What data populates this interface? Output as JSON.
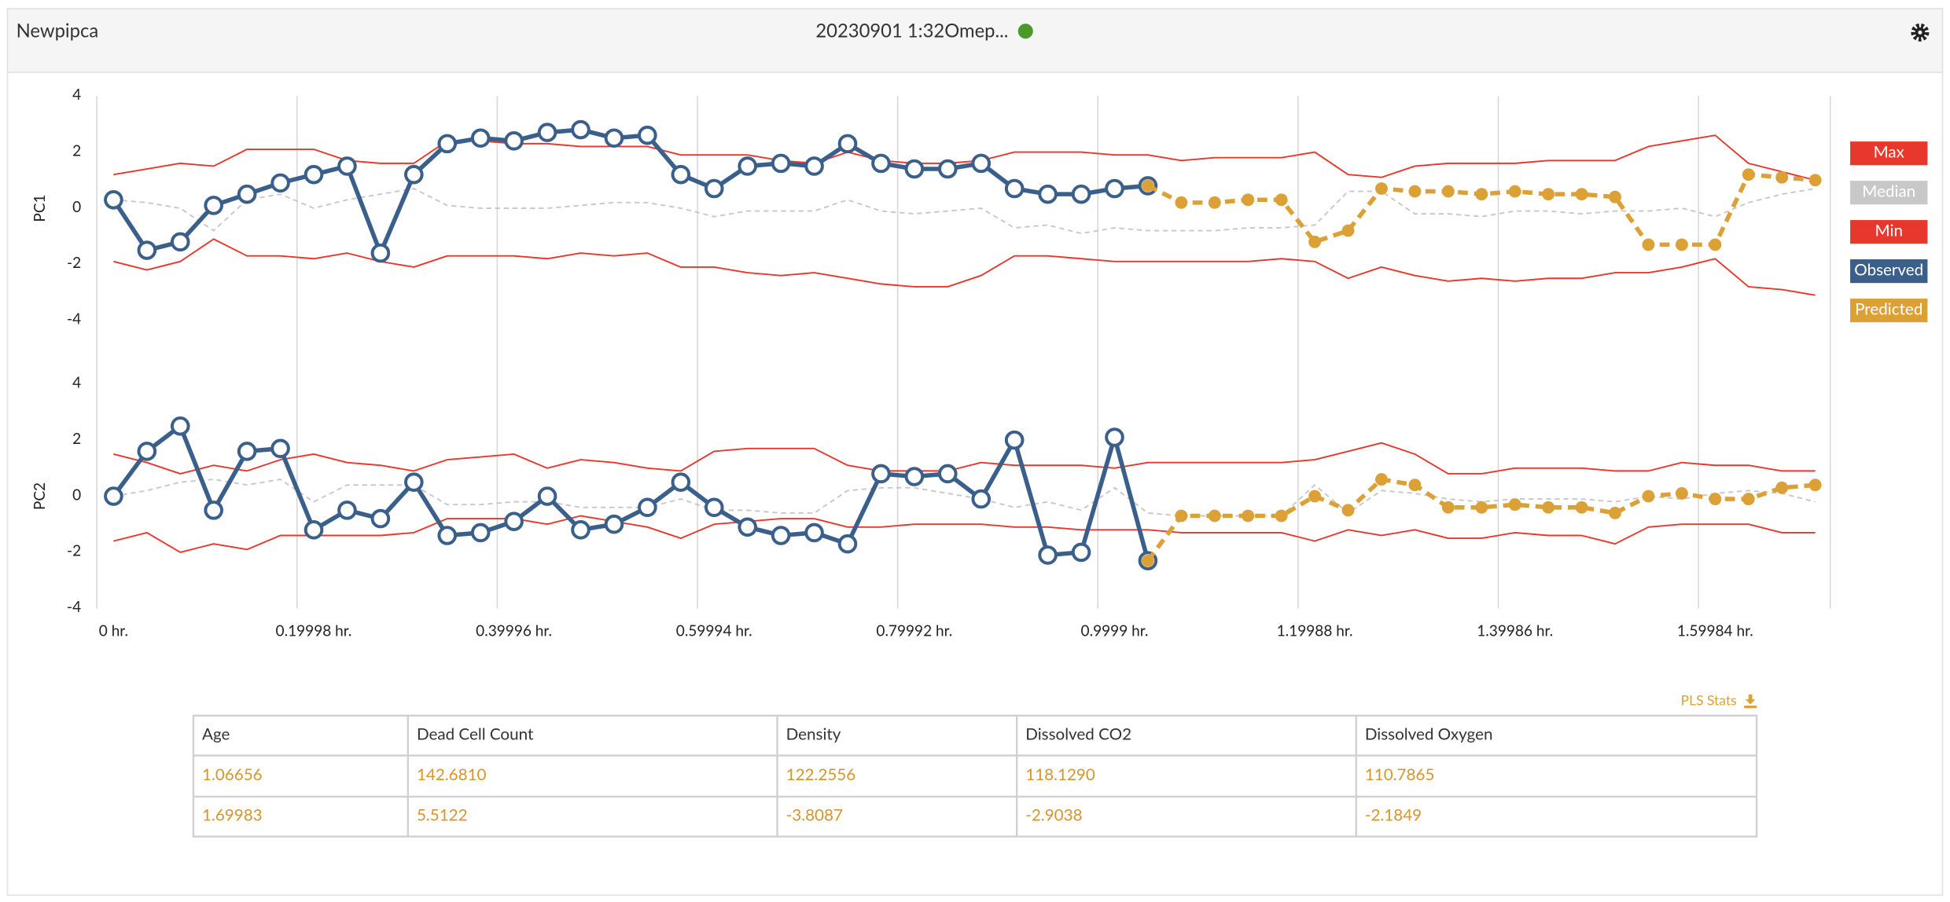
{
  "header": {
    "title": "Newpipca",
    "subtitle": "20230901 1:32Omep..."
  },
  "chart_data": [
    {
      "type": "line",
      "ylabel": "PC1",
      "ylim": [
        -4,
        4
      ],
      "yticks": [
        -4,
        -2,
        0,
        2,
        4
      ],
      "series": [
        {
          "name": "Max",
          "color": "#e8372c",
          "values": [
            1.2,
            1.4,
            1.6,
            1.5,
            2.1,
            2.1,
            2.1,
            1.7,
            1.6,
            1.6,
            2.4,
            2.4,
            2.3,
            2.3,
            2.2,
            2.2,
            2.2,
            1.9,
            1.9,
            1.9,
            1.7,
            1.6,
            2.0,
            1.7,
            1.6,
            1.6,
            1.7,
            2.0,
            2.0,
            2.0,
            1.9,
            1.9,
            1.7,
            1.8,
            1.8,
            1.8,
            2.0,
            1.2,
            1.1,
            1.5,
            1.6,
            1.6,
            1.6,
            1.7,
            1.7,
            1.7,
            2.2,
            2.4,
            2.6,
            1.6,
            1.3,
            1.0
          ]
        },
        {
          "name": "Median",
          "color": "#c8c8c8",
          "dashed": true,
          "values": [
            0.3,
            0.2,
            0.0,
            -0.8,
            0.3,
            0.5,
            0.0,
            0.3,
            0.5,
            0.7,
            0.1,
            0.0,
            0.0,
            0.0,
            0.1,
            0.2,
            0.2,
            0.0,
            -0.3,
            -0.1,
            -0.1,
            -0.1,
            0.3,
            -0.1,
            -0.2,
            -0.1,
            0.0,
            -0.7,
            -0.6,
            -0.9,
            -0.7,
            -0.8,
            -0.8,
            -0.8,
            -0.7,
            -0.7,
            -0.6,
            0.6,
            0.6,
            -0.2,
            -0.2,
            -0.3,
            -0.1,
            -0.1,
            -0.2,
            -0.1,
            -0.1,
            0.0,
            -0.3,
            0.2,
            0.5,
            0.7
          ]
        },
        {
          "name": "Min",
          "color": "#e8372c",
          "values": [
            -1.9,
            -2.2,
            -1.9,
            -1.1,
            -1.7,
            -1.7,
            -1.8,
            -1.6,
            -1.9,
            -2.1,
            -1.7,
            -1.7,
            -1.7,
            -1.8,
            -1.6,
            -1.7,
            -1.6,
            -2.1,
            -2.1,
            -2.3,
            -2.4,
            -2.3,
            -2.5,
            -2.7,
            -2.8,
            -2.8,
            -2.4,
            -1.7,
            -1.7,
            -1.8,
            -1.9,
            -1.9,
            -1.9,
            -1.9,
            -1.9,
            -1.8,
            -1.9,
            -2.5,
            -2.1,
            -2.4,
            -2.6,
            -2.5,
            -2.6,
            -2.5,
            -2.5,
            -2.3,
            -2.3,
            -2.1,
            -1.8,
            -2.8,
            -2.9,
            -3.1
          ]
        },
        {
          "name": "Observed",
          "color": "#3a5f8a",
          "markers": "hollow",
          "values": [
            0.3,
            -1.5,
            -1.2,
            0.1,
            0.5,
            0.9,
            1.2,
            1.5,
            -1.6,
            1.2,
            2.3,
            2.5,
            2.4,
            2.7,
            2.8,
            2.5,
            2.6,
            1.2,
            0.7,
            1.5,
            1.6,
            1.5,
            2.3,
            1.6,
            1.4,
            1.4,
            1.6,
            0.7,
            0.5,
            0.5,
            0.7,
            0.8,
            null,
            null,
            null,
            null,
            null,
            null,
            null,
            null,
            null,
            null,
            null,
            null,
            null,
            null,
            null,
            null,
            null,
            null,
            null,
            null
          ]
        },
        {
          "name": "Predicted",
          "color": "#dca136",
          "dashed": true,
          "markers": "filled",
          "values": [
            null,
            null,
            null,
            null,
            null,
            null,
            null,
            null,
            null,
            null,
            null,
            null,
            null,
            null,
            null,
            null,
            null,
            null,
            null,
            null,
            null,
            null,
            null,
            null,
            null,
            null,
            null,
            null,
            null,
            null,
            null,
            0.8,
            0.2,
            0.2,
            0.3,
            0.3,
            -1.2,
            -0.8,
            0.7,
            0.6,
            0.6,
            0.5,
            0.6,
            0.5,
            0.5,
            0.4,
            -1.3,
            -1.3,
            -1.3,
            1.2,
            1.1,
            1.0
          ]
        }
      ]
    },
    {
      "type": "line",
      "ylabel": "PC2",
      "ylim": [
        -4,
        4
      ],
      "yticks": [
        -4,
        -2,
        0,
        2,
        4
      ],
      "categories": [
        "0 hr.",
        null,
        null,
        null,
        null,
        null,
        "0.19998 hr.",
        null,
        null,
        null,
        null,
        null,
        "0.39996 hr.",
        null,
        null,
        null,
        null,
        null,
        "0.59994 hr.",
        null,
        null,
        null,
        null,
        null,
        "0.79992 hr.",
        null,
        null,
        null,
        null,
        null,
        "0.9999 hr.",
        null,
        null,
        null,
        null,
        null,
        "1.19988 hr.",
        null,
        null,
        null,
        null,
        null,
        "1.39986 hr.",
        null,
        null,
        null,
        null,
        null,
        "1.59984 hr.",
        null,
        null,
        null
      ],
      "series": [
        {
          "color": "#e8372c",
          "values": [
            1.5,
            1.2,
            0.8,
            1.1,
            0.9,
            1.3,
            1.5,
            1.2,
            1.1,
            0.9,
            1.3,
            1.4,
            1.5,
            1.0,
            1.3,
            1.2,
            1.0,
            0.9,
            1.6,
            1.7,
            1.7,
            1.7,
            1.1,
            0.9,
            0.9,
            0.9,
            1.2,
            1.1,
            1.1,
            1.1,
            1.0,
            1.2,
            1.2,
            1.2,
            1.2,
            1.2,
            1.3,
            1.6,
            1.9,
            1.5,
            0.8,
            0.8,
            1.0,
            1.0,
            1.0,
            0.9,
            0.9,
            1.2,
            1.1,
            1.1,
            0.9,
            0.9
          ]
        },
        {
          "color": "#c8c8c8",
          "dashed": true,
          "values": [
            0.0,
            0.2,
            0.5,
            0.6,
            0.4,
            0.6,
            -0.2,
            0.4,
            0.4,
            0.4,
            -0.3,
            -0.3,
            -0.2,
            -0.2,
            -0.4,
            -0.4,
            -0.4,
            -0.1,
            -0.5,
            -0.5,
            -0.6,
            -0.6,
            0.2,
            0.3,
            0.3,
            0.1,
            -0.1,
            -0.4,
            -0.2,
            -0.5,
            0.3,
            -0.6,
            -0.7,
            -0.7,
            -0.7,
            -0.7,
            0.4,
            -0.6,
            0.2,
            0.1,
            -0.1,
            -0.2,
            -0.1,
            -0.1,
            -0.1,
            -0.2,
            0.0,
            -0.1,
            0.1,
            0.2,
            0.1,
            -0.2
          ]
        },
        {
          "color": "#e8372c",
          "values": [
            -1.6,
            -1.3,
            -2.0,
            -1.7,
            -1.9,
            -1.4,
            -1.4,
            -1.4,
            -1.4,
            -1.3,
            -0.8,
            -0.8,
            -0.8,
            -1.0,
            -0.7,
            -0.9,
            -1.1,
            -1.5,
            -1.0,
            -0.9,
            -0.8,
            -0.8,
            -1.1,
            -1.1,
            -1.0,
            -1.0,
            -1.0,
            -1.1,
            -1.1,
            -1.2,
            -1.2,
            -1.2,
            -1.3,
            -1.3,
            -1.3,
            -1.3,
            -1.6,
            -1.2,
            -1.4,
            -1.2,
            -1.5,
            -1.5,
            -1.3,
            -1.4,
            -1.4,
            -1.7,
            -1.1,
            -1.0,
            -1.0,
            -1.0,
            -1.3,
            -1.3
          ]
        },
        {
          "color": "#3a5f8a",
          "markers": "hollow",
          "values": [
            0.0,
            1.6,
            2.5,
            -0.5,
            1.6,
            1.7,
            -1.2,
            -0.5,
            -0.8,
            0.5,
            -1.4,
            -1.3,
            -0.9,
            0.0,
            -1.2,
            -1.0,
            -0.4,
            0.5,
            -0.4,
            -1.1,
            -1.4,
            -1.3,
            -1.7,
            0.8,
            0.7,
            0.8,
            -0.1,
            2.0,
            -2.1,
            -2.0,
            2.1,
            -2.3,
            null,
            null,
            null,
            null,
            null,
            null,
            null,
            null,
            null,
            null,
            null,
            null,
            null,
            null,
            null,
            null,
            null,
            null,
            null,
            null
          ]
        },
        {
          "color": "#dca136",
          "dashed": true,
          "markers": "filled",
          "values": [
            null,
            null,
            null,
            null,
            null,
            null,
            null,
            null,
            null,
            null,
            null,
            null,
            null,
            null,
            null,
            null,
            null,
            null,
            null,
            null,
            null,
            null,
            null,
            null,
            null,
            null,
            null,
            null,
            null,
            null,
            null,
            -2.3,
            -0.7,
            -0.7,
            -0.7,
            -0.7,
            0.0,
            -0.5,
            0.6,
            0.4,
            -0.4,
            -0.4,
            -0.3,
            -0.4,
            -0.4,
            -0.6,
            0.0,
            0.1,
            -0.1,
            -0.1,
            0.3,
            0.4
          ]
        }
      ]
    }
  ],
  "pls_stats": {
    "title": "PLS Stats",
    "columns": [
      "Age",
      "Dead Cell Count",
      "Density",
      "Dissolved CO2",
      "Dissolved Oxygen"
    ],
    "rows": [
      [
        "1.06656",
        "142.6810",
        "122.2556",
        "118.1290",
        "110.7865"
      ],
      [
        "1.69983",
        "5.5122",
        "-3.8087",
        "-2.9038",
        "-2.1849"
      ]
    ]
  }
}
